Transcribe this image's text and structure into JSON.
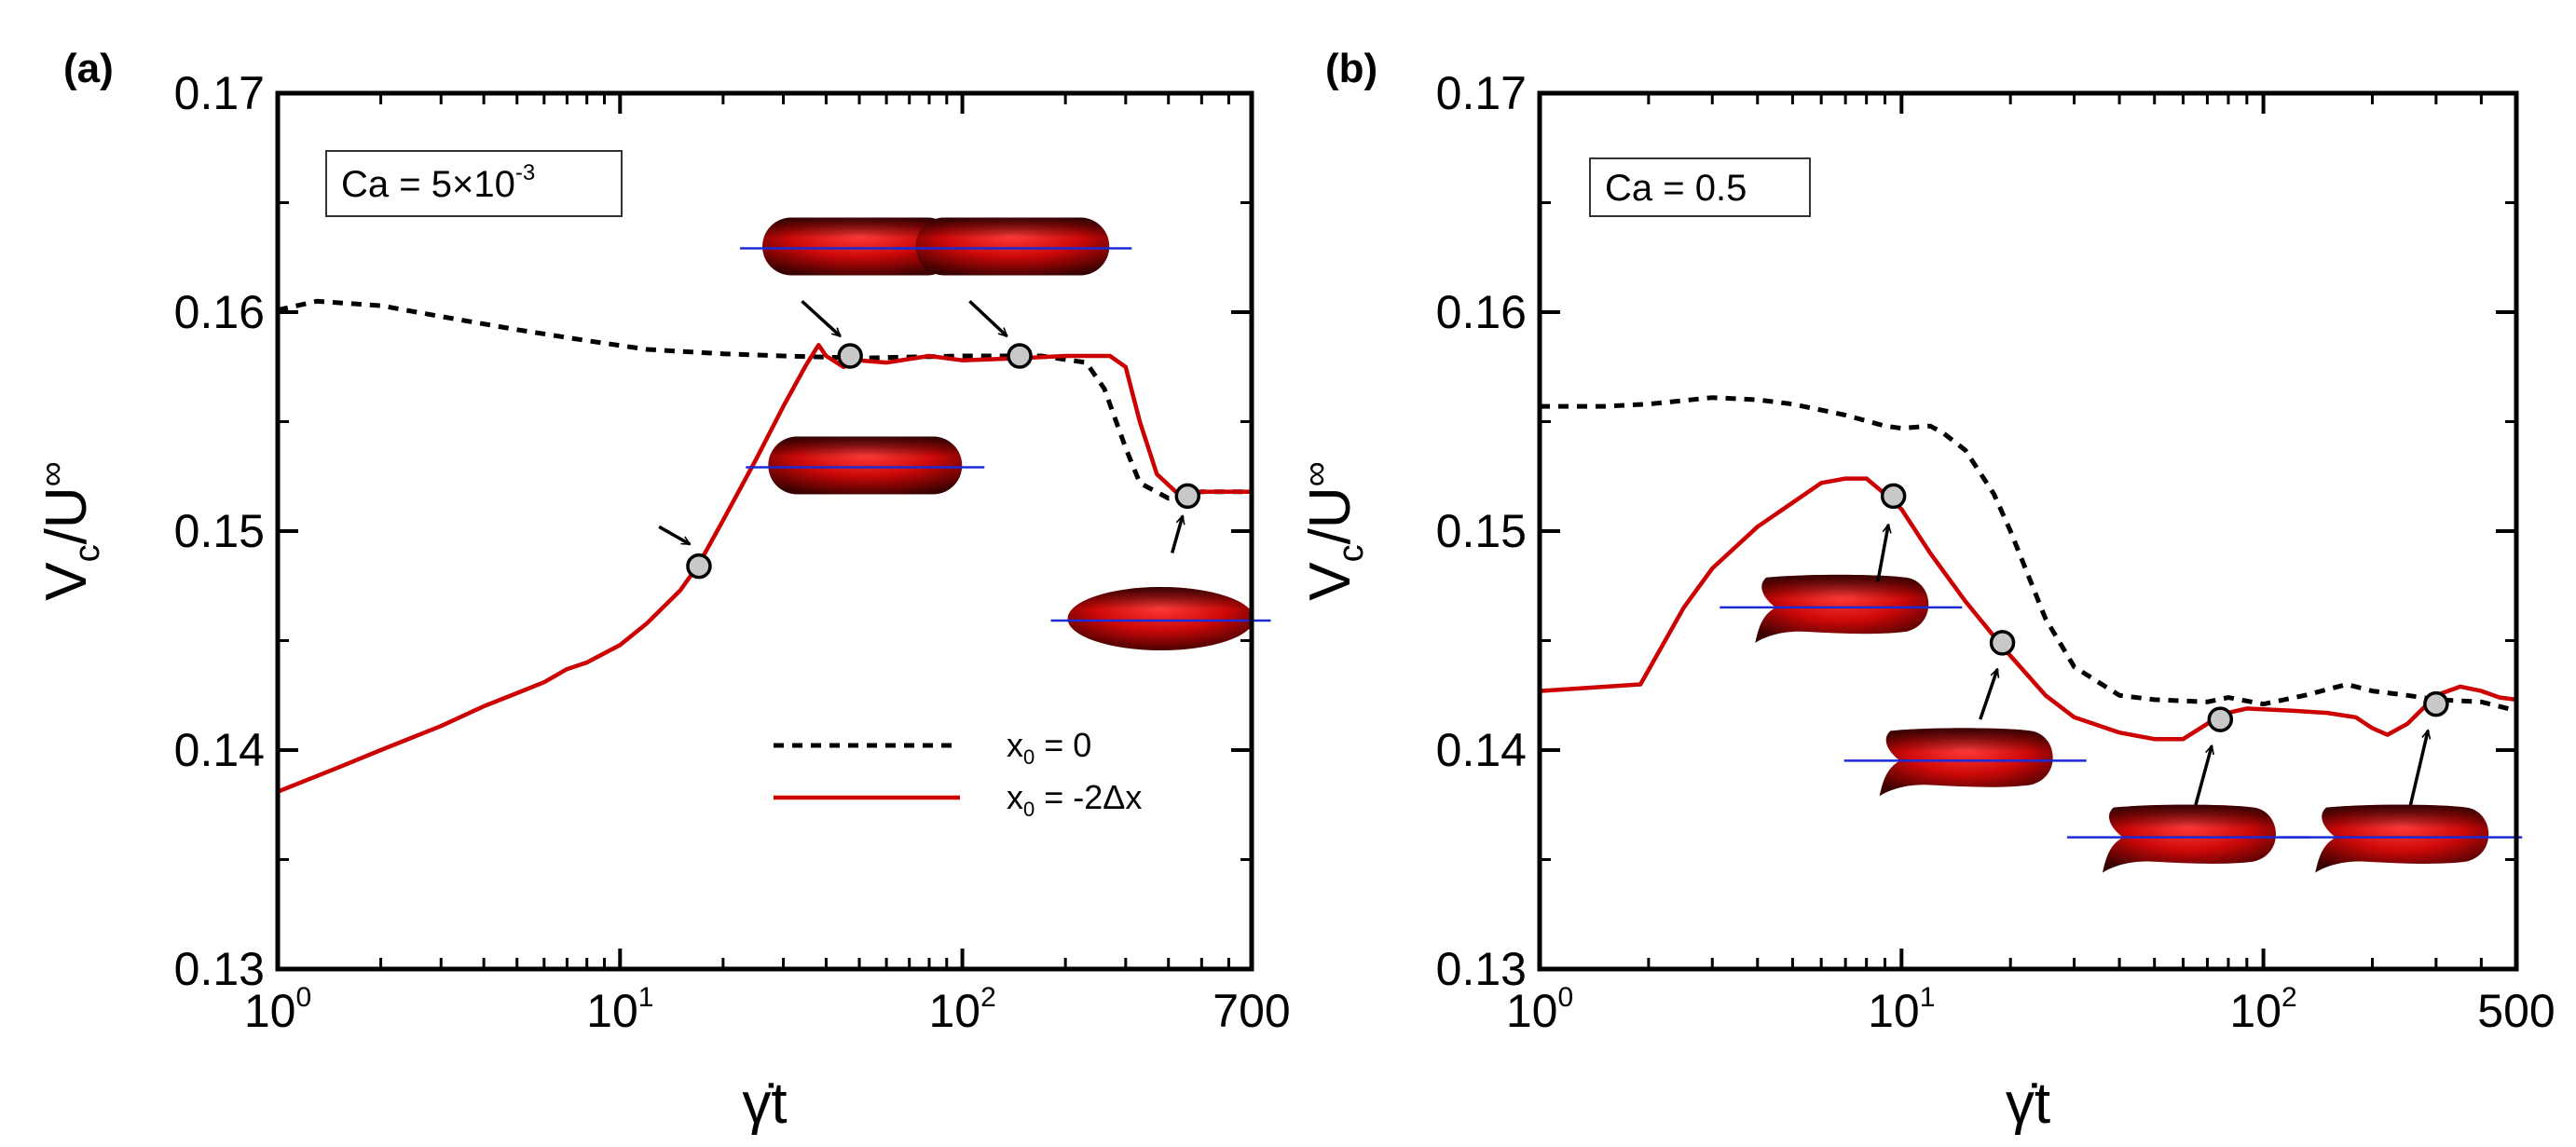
{
  "chart_data": [
    {
      "panel_label": "(a)",
      "type": "line",
      "x_scale": "log",
      "xlim": [
        1,
        700
      ],
      "ylim": [
        0.13,
        0.17
      ],
      "x_ticks": [
        {
          "value": 1,
          "base": "10",
          "exp": "0"
        },
        {
          "value": 10,
          "base": "10",
          "exp": "1"
        },
        {
          "value": 100,
          "base": "10",
          "exp": "2"
        },
        {
          "value": 700,
          "base": "700",
          "exp": ""
        }
      ],
      "y_ticks": [
        {
          "value": 0.13,
          "label": "0.13"
        },
        {
          "value": 0.14,
          "label": "0.14"
        },
        {
          "value": 0.15,
          "label": "0.15"
        },
        {
          "value": 0.16,
          "label": "0.16"
        },
        {
          "value": 0.17,
          "label": "0.17"
        }
      ],
      "xlabel": "γ̇t",
      "ylabel": {
        "main": "V",
        "sub": "c",
        "rest": "/U",
        "sup": "∞"
      },
      "annotation": {
        "prefix": "Ca = 5×10",
        "sup": "-3"
      },
      "legend": {
        "placement": "lower-right",
        "entries": [
          {
            "main": "x",
            "sub": "0",
            "rest": " = 0",
            "color": "#000000",
            "dash": true
          },
          {
            "main": "x",
            "sub": "0",
            "rest": " = -2Δx",
            "color": "#cc0000",
            "dash": false
          }
        ]
      },
      "series": [
        {
          "color": "#000000",
          "dash": true,
          "points": [
            [
              1,
              0.1601
            ],
            [
              1.3,
              0.1605
            ],
            [
              2,
              0.1603
            ],
            [
              3,
              0.1598
            ],
            [
              5,
              0.1592
            ],
            [
              8,
              0.1587
            ],
            [
              12,
              0.1583
            ],
            [
              20,
              0.1581
            ],
            [
              30,
              0.158
            ],
            [
              50,
              0.1579
            ],
            [
              100,
              0.158
            ],
            [
              170,
              0.158
            ],
            [
              230,
              0.1577
            ],
            [
              260,
              0.1565
            ],
            [
              300,
              0.1538
            ],
            [
              330,
              0.1522
            ],
            [
              400,
              0.1515
            ],
            [
              500,
              0.1518
            ],
            [
              700,
              0.1518
            ]
          ]
        },
        {
          "color": "#cc0000",
          "dash": false,
          "points": [
            [
              1,
              0.1381
            ],
            [
              1.5,
              0.1392
            ],
            [
              2,
              0.14
            ],
            [
              3,
              0.1411
            ],
            [
              4,
              0.142
            ],
            [
              5,
              0.1426
            ],
            [
              6,
              0.1431
            ],
            [
              7,
              0.1437
            ],
            [
              8,
              0.144
            ],
            [
              10,
              0.1448
            ],
            [
              12,
              0.1458
            ],
            [
              15,
              0.1473
            ],
            [
              17,
              0.1485
            ],
            [
              20,
              0.1505
            ],
            [
              25,
              0.1533
            ],
            [
              30,
              0.1557
            ],
            [
              35,
              0.1576
            ],
            [
              38,
              0.1585
            ],
            [
              40,
              0.158
            ],
            [
              45,
              0.1575
            ],
            [
              50,
              0.1578
            ],
            [
              60,
              0.1577
            ],
            [
              80,
              0.158
            ],
            [
              100,
              0.1578
            ],
            [
              150,
              0.1579
            ],
            [
              200,
              0.158
            ],
            [
              270,
              0.158
            ],
            [
              300,
              0.1575
            ],
            [
              330,
              0.155
            ],
            [
              370,
              0.1526
            ],
            [
              420,
              0.1518
            ],
            [
              500,
              0.1518
            ],
            [
              700,
              0.1518
            ]
          ]
        }
      ],
      "markers": [
        [
          17,
          0.1484
        ],
        [
          47,
          0.158
        ],
        [
          147,
          0.158
        ],
        [
          455,
          0.1516
        ]
      ],
      "insets": [
        {
          "shape": "capsule",
          "x": 52,
          "y": 0.153
        },
        {
          "shape": "capsule",
          "x": 50,
          "y": 0.163
        },
        {
          "shape": "capsule",
          "x": 140,
          "y": 0.163
        },
        {
          "shape": "ellipse",
          "x": 380,
          "y": 0.146
        }
      ],
      "arrows": [
        {
          "from": [
            13,
            0.1502
          ],
          "to": [
            16,
            0.1494
          ]
        },
        {
          "from": [
            34,
            0.1605
          ],
          "to": [
            44,
            0.1589
          ]
        },
        {
          "from": [
            105,
            0.1605
          ],
          "to": [
            135,
            0.1589
          ]
        },
        {
          "from": [
            410,
            0.149
          ],
          "to": [
            440,
            0.1507
          ]
        }
      ]
    },
    {
      "panel_label": "(b)",
      "type": "line",
      "x_scale": "log",
      "xlim": [
        1,
        500
      ],
      "ylim": [
        0.13,
        0.17
      ],
      "x_ticks": [
        {
          "value": 1,
          "base": "10",
          "exp": "0"
        },
        {
          "value": 10,
          "base": "10",
          "exp": "1"
        },
        {
          "value": 100,
          "base": "10",
          "exp": "2"
        },
        {
          "value": 500,
          "base": "500",
          "exp": ""
        }
      ],
      "y_ticks": [
        {
          "value": 0.13,
          "label": "0.13"
        },
        {
          "value": 0.14,
          "label": "0.14"
        },
        {
          "value": 0.15,
          "label": "0.15"
        },
        {
          "value": 0.16,
          "label": "0.16"
        },
        {
          "value": 0.17,
          "label": "0.17"
        }
      ],
      "xlabel": "γ̇t",
      "ylabel": {
        "main": "V",
        "sub": "c",
        "rest": "/U",
        "sup": "∞"
      },
      "annotation": {
        "prefix": "Ca = 0.5",
        "sup": ""
      },
      "legend": null,
      "series": [
        {
          "color": "#000000",
          "dash": true,
          "points": [
            [
              1,
              0.1557
            ],
            [
              1.5,
              0.1557
            ],
            [
              2,
              0.1558
            ],
            [
              3,
              0.1561
            ],
            [
              4,
              0.156
            ],
            [
              5,
              0.1558
            ],
            [
              7,
              0.1553
            ],
            [
              9,
              0.1548
            ],
            [
              10,
              0.1547
            ],
            [
              12,
              0.1548
            ],
            [
              13,
              0.1545
            ],
            [
              15,
              0.1537
            ],
            [
              18,
              0.1517
            ],
            [
              20,
              0.15
            ],
            [
              25,
              0.146
            ],
            [
              30,
              0.1438
            ],
            [
              40,
              0.1425
            ],
            [
              50,
              0.1423
            ],
            [
              70,
              0.1422
            ],
            [
              80,
              0.1424
            ],
            [
              100,
              0.1421
            ],
            [
              130,
              0.1425
            ],
            [
              170,
              0.143
            ],
            [
              200,
              0.1427
            ],
            [
              250,
              0.1425
            ],
            [
              300,
              0.1423
            ],
            [
              400,
              0.1422
            ],
            [
              500,
              0.1418
            ]
          ]
        },
        {
          "color": "#cc0000",
          "dash": false,
          "points": [
            [
              1,
              0.1427
            ],
            [
              1.9,
              0.143
            ],
            [
              2.5,
              0.1465
            ],
            [
              3,
              0.1483
            ],
            [
              4,
              0.1502
            ],
            [
              5,
              0.1513
            ],
            [
              6,
              0.1522
            ],
            [
              7,
              0.1524
            ],
            [
              8,
              0.1524
            ],
            [
              9,
              0.1517
            ],
            [
              10,
              0.151
            ],
            [
              12,
              0.149
            ],
            [
              15,
              0.1468
            ],
            [
              18,
              0.1452
            ],
            [
              20,
              0.1443
            ],
            [
              25,
              0.1425
            ],
            [
              30,
              0.1415
            ],
            [
              40,
              0.1408
            ],
            [
              50,
              0.1405
            ],
            [
              60,
              0.1405
            ],
            [
              70,
              0.1412
            ],
            [
              75,
              0.1416
            ],
            [
              90,
              0.1419
            ],
            [
              120,
              0.1418
            ],
            [
              150,
              0.1417
            ],
            [
              180,
              0.1415
            ],
            [
              200,
              0.141
            ],
            [
              220,
              0.1407
            ],
            [
              250,
              0.1412
            ],
            [
              280,
              0.142
            ],
            [
              300,
              0.1425
            ],
            [
              350,
              0.1429
            ],
            [
              400,
              0.1427
            ],
            [
              450,
              0.1424
            ],
            [
              500,
              0.1423
            ]
          ]
        }
      ],
      "markers": [
        [
          9.5,
          0.1516
        ],
        [
          19,
          0.1449
        ],
        [
          76,
          0.1414
        ],
        [
          300,
          0.1421
        ]
      ],
      "insets": [
        {
          "shape": "bent",
          "x": 6.8,
          "y": 0.1466
        },
        {
          "shape": "bent",
          "x": 15,
          "y": 0.1396
        },
        {
          "shape": "bent",
          "x": 62,
          "y": 0.1361
        },
        {
          "shape": "bent",
          "x": 240,
          "y": 0.1361
        }
      ],
      "arrows": [
        {
          "from": [
            8.6,
            0.1477
          ],
          "to": [
            9.2,
            0.1503
          ]
        },
        {
          "from": [
            16.5,
            0.1414
          ],
          "to": [
            18.4,
            0.1437
          ]
        },
        {
          "from": [
            65,
            0.1375
          ],
          "to": [
            72,
            0.1402
          ]
        },
        {
          "from": [
            255,
            0.1375
          ],
          "to": [
            285,
            0.1409
          ]
        }
      ]
    }
  ]
}
